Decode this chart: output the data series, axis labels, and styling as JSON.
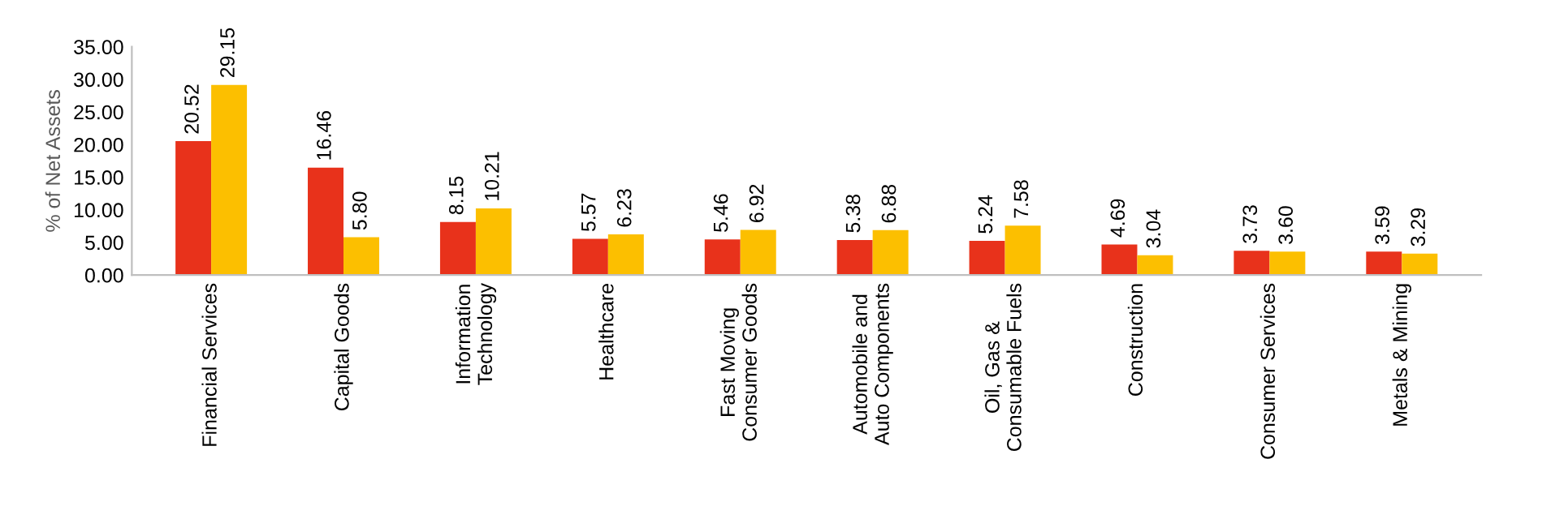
{
  "chart_data": {
    "type": "bar",
    "ylabel": "% of Net Assets",
    "categories": [
      "Financial Services",
      "Capital Goods",
      "Information\nTechnology",
      "Healthcare",
      "Fast Moving\nConsumer Goods",
      "Automobile and\nAuto Components",
      "Oil, Gas &\nConsumable Fuels",
      "Construction",
      "Consumer Services",
      "Metals & Mining"
    ],
    "series": [
      {
        "color": "#e8321b",
        "values": [
          20.52,
          16.46,
          8.15,
          5.57,
          5.46,
          5.38,
          5.24,
          4.69,
          3.73,
          3.59
        ],
        "value_labels": [
          "20.52",
          "16.46",
          "8.15",
          "5.57",
          "5.46",
          "5.38",
          "5.24",
          "4.69",
          "3.73",
          "3.59"
        ]
      },
      {
        "color": "#fcbf00",
        "values": [
          29.15,
          5.8,
          10.21,
          6.23,
          6.92,
          6.88,
          7.58,
          3.04,
          3.6,
          3.29
        ],
        "value_labels": [
          "29.15",
          "5.80",
          "10.21",
          "6.23",
          "6.92",
          "6.88",
          "7.58",
          "3.04",
          "3.60",
          "3.29"
        ]
      }
    ],
    "ylim": [
      0,
      35
    ],
    "yticks": [
      {
        "value": 0,
        "label": "0.00"
      },
      {
        "value": 5,
        "label": "5.00"
      },
      {
        "value": 10,
        "label": "10.00"
      },
      {
        "value": 15,
        "label": "15.00"
      },
      {
        "value": 20,
        "label": "20.00"
      },
      {
        "value": 25,
        "label": "25.00"
      },
      {
        "value": 30,
        "label": "30.00"
      },
      {
        "value": 35,
        "label": "35.00"
      }
    ],
    "grid": false
  }
}
